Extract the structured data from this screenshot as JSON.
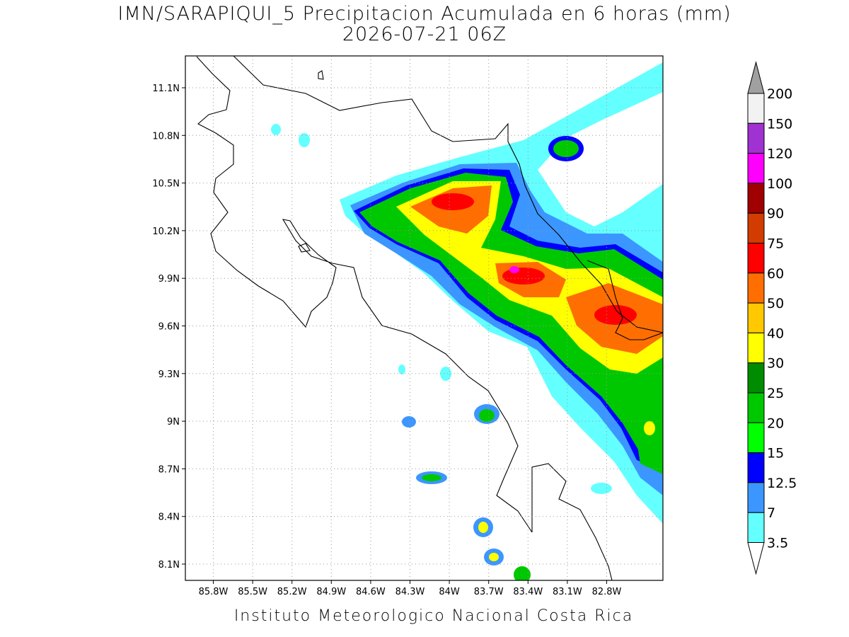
{
  "map": {
    "title": "IMN/SARAPIQUI_5 Precipitacion Acumulada en 6 horas (mm)",
    "subtitle": "2026-07-21 06Z",
    "lon_labels": [
      "85.8W",
      "85.5W",
      "85.2W",
      "84.9W",
      "84.6W",
      "84.3W",
      "84W",
      "83.7W",
      "83.4W",
      "83.1W",
      "82.8W"
    ],
    "lat_labels": [
      "11.1N",
      "10.8N",
      "10.5N",
      "10.2N",
      "9.9N",
      "9.6N",
      "9.3N",
      "9N",
      "8.7N",
      "8.4N",
      "8.1N"
    ],
    "legend": {
      "labels": [
        "200",
        "150",
        "120",
        "100",
        "90",
        "75",
        "60",
        "50",
        "40",
        "30",
        "25",
        "20",
        "15",
        "12.5",
        "7",
        "3.5"
      ],
      "colors": [
        "#a0a0a0",
        "#f2f2f2",
        "#a032d2",
        "#ff00ff",
        "#a00000",
        "#d23c00",
        "#ff0000",
        "#ff6e00",
        "#ffc800",
        "#ffff00",
        "#008c00",
        "#00c800",
        "#00ff00",
        "#0000ff",
        "#3c96ff",
        "#64ffff",
        "#ffffff"
      ]
    },
    "footer": "Instituto Meteorologico Nacional Costa Rica"
  }
}
